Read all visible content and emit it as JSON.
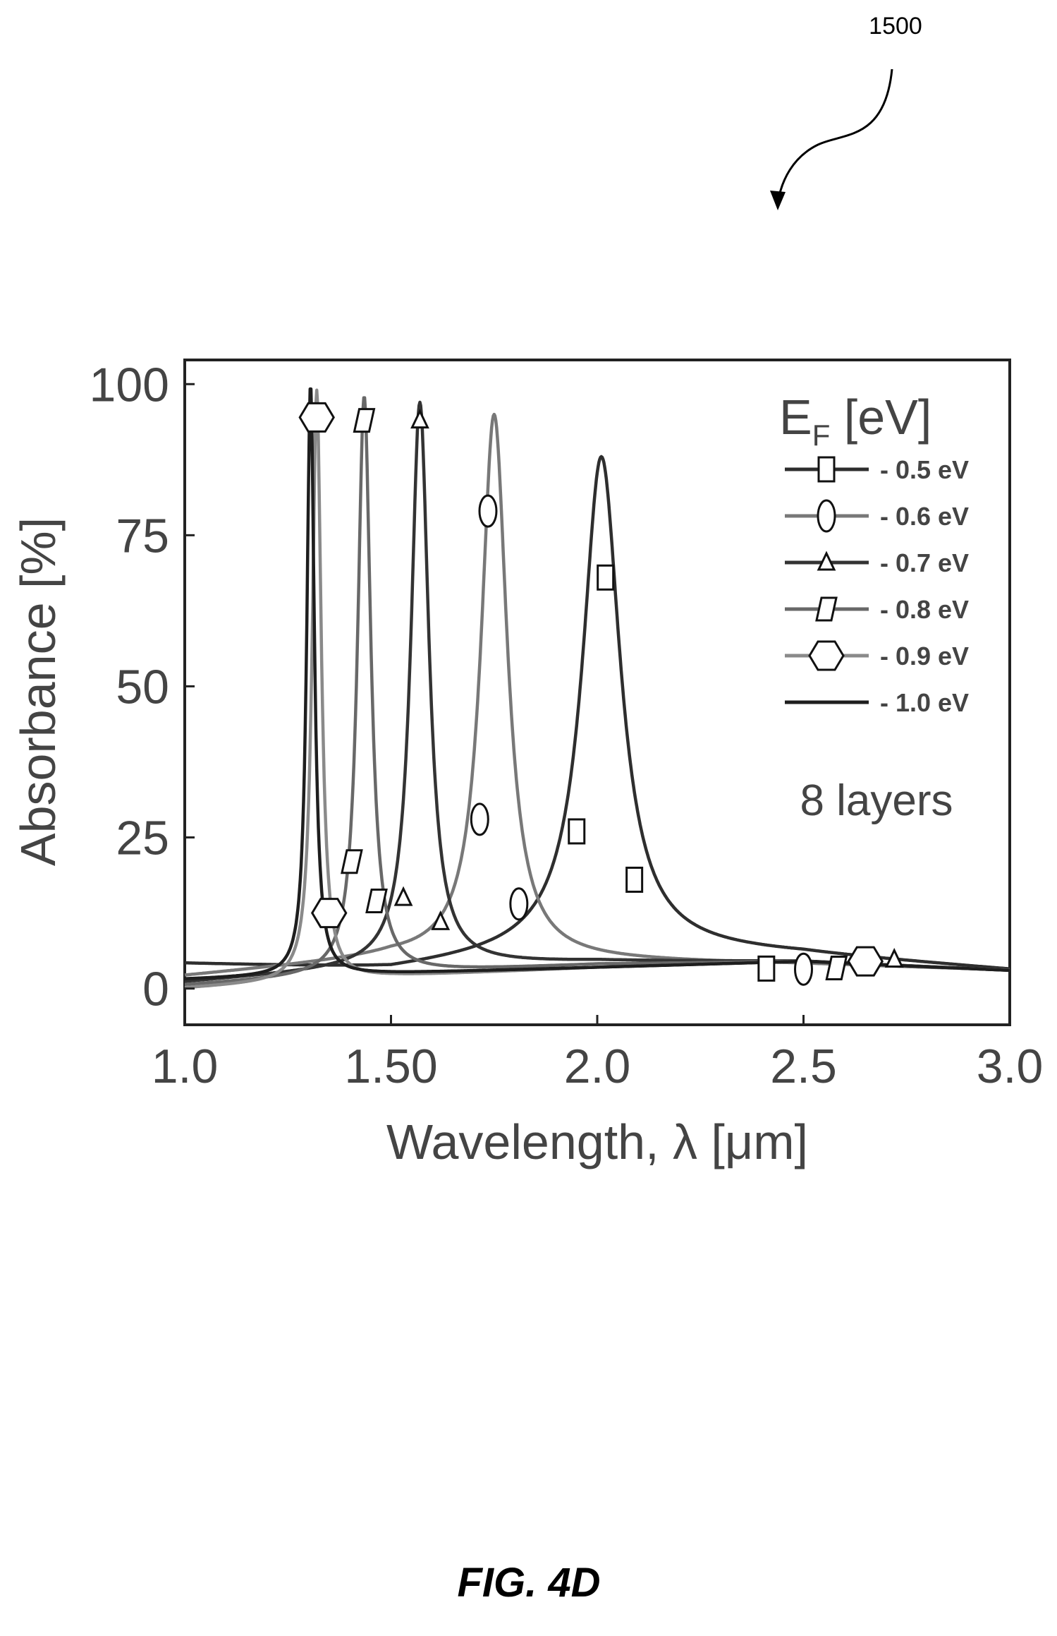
{
  "figure": {
    "reference_number": "1500",
    "caption": "FIG. 4D"
  },
  "chart_data": {
    "type": "line",
    "title": "",
    "xlabel": "Wavelength, λ [μm]",
    "ylabel": "Absorbance [%]",
    "xlim": [
      1.0,
      3.0
    ],
    "ylim": [
      -6,
      104
    ],
    "xticks": [
      {
        "value": 1.0,
        "label": "1.0"
      },
      {
        "value": 1.5,
        "label": "1.50"
      },
      {
        "value": 2.0,
        "label": "2.0"
      },
      {
        "value": 2.5,
        "label": "2.5"
      },
      {
        "value": 3.0,
        "label": "3.0"
      }
    ],
    "yticks": [
      {
        "value": 0,
        "label": "0"
      },
      {
        "value": 25,
        "label": "25"
      },
      {
        "value": 50,
        "label": "50"
      },
      {
        "value": 75,
        "label": "75"
      },
      {
        "value": 100,
        "label": "100"
      }
    ],
    "grid": false,
    "legend": {
      "title": "E",
      "title_subscript": "F",
      "title_suffix": " [eV]",
      "placement": "top-right"
    },
    "annotation": "8 layers",
    "series": [
      {
        "name": "- 0.5 eV",
        "marker": "square",
        "color": "#2e2e2e",
        "peak_x": 2.01,
        "peak_y": 88,
        "width": 0.055,
        "base": [
          4,
          3,
          6.5,
          5.5,
          3
        ],
        "marker_points": [
          [
            2.02,
            68
          ],
          [
            1.95,
            26
          ],
          [
            2.09,
            18
          ],
          [
            2.41,
            3.3
          ]
        ]
      },
      {
        "name": "- 0.6 eV",
        "marker": "ellipse",
        "color": "#787878",
        "peak_x": 1.75,
        "peak_y": 95,
        "width": 0.038,
        "base": [
          2,
          5,
          4.5,
          4,
          3
        ],
        "marker_points": [
          [
            1.735,
            79
          ],
          [
            1.715,
            28
          ],
          [
            1.81,
            14
          ],
          [
            2.5,
            3.2
          ]
        ]
      },
      {
        "name": "- 0.7 eV",
        "marker": "triangle",
        "color": "#333333",
        "peak_x": 1.57,
        "peak_y": 97,
        "width": 0.026,
        "base": [
          1,
          3.5,
          4.5,
          4.5,
          3
        ],
        "marker_points": [
          [
            1.57,
            94
          ],
          [
            1.53,
            15
          ],
          [
            1.62,
            11
          ],
          [
            2.72,
            4.8
          ]
        ]
      },
      {
        "name": "- 0.8 eV",
        "marker": "parallelogram",
        "color": "#686868",
        "peak_x": 1.435,
        "peak_y": 98,
        "width": 0.019,
        "base": [
          0.5,
          2.5,
          4,
          4.5,
          3
        ],
        "marker_points": [
          [
            1.435,
            94
          ],
          [
            1.405,
            21
          ],
          [
            1.465,
            14.5
          ],
          [
            2.58,
            3.4
          ]
        ]
      },
      {
        "name": "- 0.9 eV",
        "marker": "hexagon",
        "color": "#8a8a8a",
        "peak_x": 1.32,
        "peak_y": 99,
        "width": 0.013,
        "base": [
          0,
          2,
          3.5,
          4.5,
          3
        ],
        "marker_points": [
          [
            1.32,
            94.5
          ],
          [
            1.35,
            12.5
          ],
          [
            2.65,
            4.5
          ]
        ]
      },
      {
        "name": "- 1.0 eV",
        "marker": "none",
        "color": "#1e1e1e",
        "peak_x": 1.305,
        "peak_y": 100,
        "width": 0.011,
        "base": [
          1.5,
          2.5,
          3.5,
          4.5,
          3
        ],
        "marker_points": []
      }
    ]
  }
}
